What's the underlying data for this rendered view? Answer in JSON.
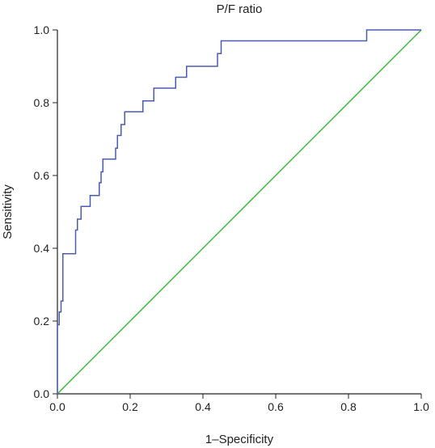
{
  "chart_data": {
    "type": "line",
    "title": "P/F ratio",
    "xlabel": "1–Specificity",
    "ylabel": "Sensitivity",
    "xlim": [
      0,
      1
    ],
    "ylim": [
      0,
      1
    ],
    "x_ticks": [
      "0.0",
      "0.2",
      "0.4",
      "0.6",
      "0.8",
      "1.0"
    ],
    "y_ticks": [
      "0.0",
      "0.2",
      "0.4",
      "0.6",
      "0.8",
      "1.0"
    ],
    "grid": false,
    "legend": "none",
    "series": [
      {
        "color": "#4a5bb5",
        "step": true,
        "x": [
          0.0,
          0.0,
          0.005,
          0.005,
          0.01,
          0.01,
          0.015,
          0.015,
          0.05,
          0.05,
          0.055,
          0.055,
          0.065,
          0.065,
          0.09,
          0.09,
          0.115,
          0.115,
          0.12,
          0.12,
          0.125,
          0.125,
          0.16,
          0.16,
          0.165,
          0.165,
          0.175,
          0.175,
          0.185,
          0.185,
          0.235,
          0.235,
          0.265,
          0.265,
          0.325,
          0.325,
          0.355,
          0.355,
          0.44,
          0.44,
          0.45,
          0.45,
          0.455,
          0.455,
          0.85,
          0.85,
          1.0
        ],
        "y": [
          0.0,
          0.19,
          0.19,
          0.225,
          0.225,
          0.255,
          0.255,
          0.385,
          0.385,
          0.45,
          0.45,
          0.48,
          0.48,
          0.515,
          0.515,
          0.545,
          0.545,
          0.58,
          0.58,
          0.61,
          0.61,
          0.645,
          0.645,
          0.675,
          0.675,
          0.71,
          0.71,
          0.74,
          0.74,
          0.775,
          0.775,
          0.805,
          0.805,
          0.84,
          0.84,
          0.87,
          0.87,
          0.9,
          0.9,
          0.935,
          0.935,
          0.97,
          0.97,
          0.97,
          0.97,
          1.0,
          1.0
        ]
      },
      {
        "color": "#3cb83c",
        "x": [
          0,
          1
        ],
        "y": [
          0,
          1
        ]
      }
    ]
  }
}
